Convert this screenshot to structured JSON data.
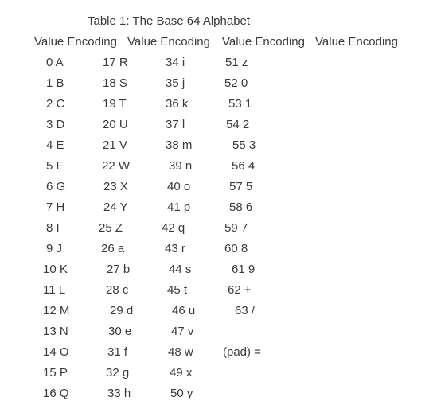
{
  "table": {
    "caption": "Table 1: The Base 64 Alphabet",
    "headers": [
      "Value Encoding",
      "Value Encoding",
      "Value Encoding",
      "Value Encoding"
    ],
    "columns": [
      [
        "0 A",
        "1 B",
        "2 C",
        "3 D",
        "4 E",
        "5 F",
        "6 G",
        "7 H",
        "8 I",
        "9 J",
        "10 K",
        "11 L",
        "12 M",
        "13 N",
        "14 O",
        "15 P",
        "16 Q"
      ],
      [
        "17 R",
        "18 S",
        "19 T",
        "20 U",
        "21 V",
        "22 W",
        "23 X",
        "24 Y",
        "25 Z",
        "26 a",
        "27 b",
        "28 c",
        "29 d",
        "30 e",
        "31 f",
        "32 g",
        "33 h"
      ],
      [
        "34 i",
        "35 j",
        "36 k",
        "37 l",
        "38 m",
        "39 n",
        "40 o",
        "41 p",
        "42 q",
        "43 r",
        "44 s",
        "45 t",
        "46 u",
        "47 v",
        "48 w",
        "49 x",
        "50 y"
      ],
      [
        "51 z",
        "52 0",
        "53 1",
        "54 2",
        "55 3",
        "56 4",
        "57 5",
        "58 6",
        "59 7",
        "60 8",
        "61 9",
        "62 +",
        "63 /",
        "",
        "(pad) =",
        "",
        ""
      ]
    ]
  }
}
